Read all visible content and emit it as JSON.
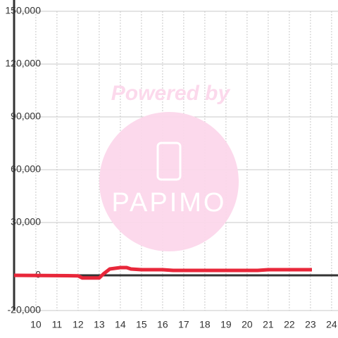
{
  "chart_data": {
    "type": "line",
    "xlim": [
      8.97,
      24.37
    ],
    "xticks": [
      10,
      11,
      12,
      13,
      14,
      15,
      16,
      17,
      18,
      19,
      20,
      21,
      22,
      23,
      24
    ],
    "ylim": [
      -20000,
      150000
    ],
    "yticks": [
      {
        "value": -20000,
        "label": "-20,000"
      },
      0,
      {
        "value": 30000,
        "label": "30,000"
      },
      {
        "value": 60000,
        "label": "60,000"
      },
      {
        "value": 90000,
        "label": "90,000"
      },
      {
        "value": 120000,
        "label": "120,000"
      },
      {
        "value": 150000,
        "label": "150,000"
      }
    ],
    "grid": true,
    "series": [
      {
        "color": "#e8273a",
        "x": [
          8.97,
          11.5,
          12,
          12.2,
          12.5,
          13,
          13.2,
          13.5,
          14,
          14.3,
          14.5,
          15,
          16,
          16.5,
          17,
          18,
          19,
          20,
          20.5,
          21,
          22,
          23.07
        ],
        "values": [
          0,
          -200,
          -300,
          -1500,
          -1500,
          -1500,
          800,
          3600,
          4400,
          4400,
          3600,
          3200,
          3200,
          2800,
          2800,
          2800,
          2800,
          2800,
          2800,
          3200,
          3200,
          3200
        ]
      }
    ]
  },
  "watermark": {
    "text": "Powered by",
    "logo": "PAPIMO"
  }
}
